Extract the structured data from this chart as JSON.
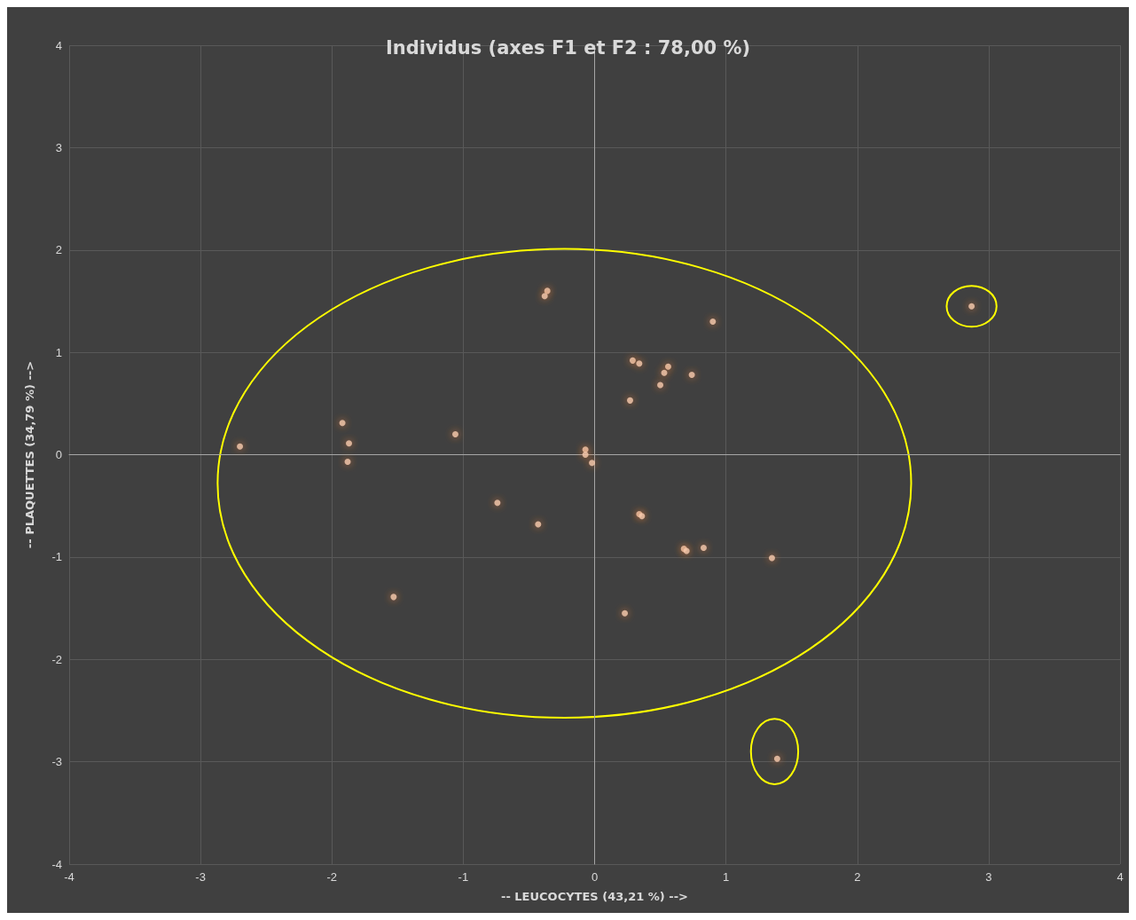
{
  "chart_data": {
    "type": "scatter",
    "title": "Individus (axes F1 et F2 : 78,00 %)",
    "xlabel": "-- LEUCOCYTES (43,21 %) -->",
    "ylabel": "-- PLAQUETTES (34,79 %) -->",
    "x": [
      -2.7,
      -1.92,
      -1.87,
      -1.88,
      -1.06,
      -0.74,
      -0.43,
      -1.53,
      -0.36,
      -0.38,
      -0.07,
      -0.07,
      -0.02,
      0.29,
      0.34,
      0.27,
      0.56,
      0.53,
      0.5,
      0.74,
      0.9,
      0.34,
      0.36,
      0.68,
      0.7,
      0.83,
      1.35,
      0.23,
      2.87,
      1.39
    ],
    "values": [
      0.08,
      0.31,
      0.11,
      -0.07,
      0.2,
      -0.47,
      -0.68,
      -1.39,
      1.6,
      1.55,
      0.05,
      0.0,
      -0.08,
      0.92,
      0.89,
      0.53,
      0.86,
      0.8,
      0.68,
      0.78,
      1.3,
      -0.58,
      -0.6,
      -0.92,
      -0.94,
      -0.91,
      -1.01,
      -1.55,
      1.45,
      -2.97
    ],
    "color": "#f8cbad",
    "marker": "circle",
    "grid": true,
    "xlim": [
      -4,
      4
    ],
    "xticks": [
      -4,
      -3,
      -2,
      -1,
      0,
      1,
      2,
      3,
      4
    ],
    "ylim": [
      -4,
      4
    ],
    "yticks": [
      -4,
      -3,
      -2,
      -1,
      0,
      1,
      2,
      3,
      4
    ]
  }
}
